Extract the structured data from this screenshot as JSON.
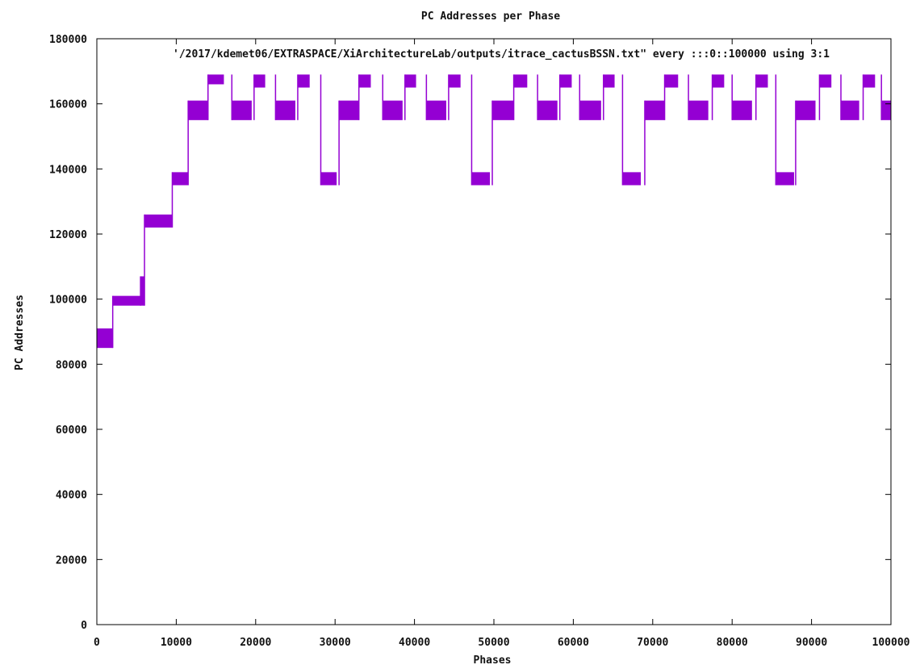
{
  "chart_data": {
    "type": "scatter",
    "title": "PC Addresses per Phase",
    "xlabel": "Phases",
    "ylabel": "PC Addresses",
    "xlim": [
      0,
      100000
    ],
    "ylim": [
      0,
      180000
    ],
    "x_ticks": [
      0,
      10000,
      20000,
      30000,
      40000,
      50000,
      60000,
      70000,
      80000,
      90000,
      100000
    ],
    "y_ticks": [
      0,
      20000,
      40000,
      60000,
      80000,
      100000,
      120000,
      140000,
      160000,
      180000
    ],
    "x_tick_labels": [
      "0",
      "10000",
      "20000",
      "30000",
      "40000",
      "50000",
      "60000",
      "70000",
      "80000",
      "90000",
      "100000"
    ],
    "y_tick_labels": [
      "0",
      "20000",
      "40000",
      "60000",
      "80000",
      "100000",
      "120000",
      "140000",
      "160000",
      "180000"
    ],
    "legend": "top-right",
    "grid": false,
    "color": "#9400d3",
    "series": [
      {
        "name": "'/2017/kdemet06/EXTRASPACE/XiArchitectureLab/outputs/itrace_cactusBSSN.txt\" every :::0::100000 using 3:1",
        "segments": [
          {
            "x": [
              0,
              2000
            ],
            "y": [
              85000,
              91000
            ]
          },
          {
            "x": [
              2000,
              5500
            ],
            "y": [
              98000,
              101000
            ]
          },
          {
            "x": [
              5500,
              6000
            ],
            "y": [
              98000,
              107000
            ]
          },
          {
            "x": [
              6000,
              9500
            ],
            "y": [
              122000,
              126000
            ]
          },
          {
            "x": [
              9500,
              11500
            ],
            "y": [
              135000,
              139000
            ]
          },
          {
            "x": [
              11500,
              14000
            ],
            "y": [
              155000,
              161000
            ]
          },
          {
            "x": [
              14000,
              16000
            ],
            "y": [
              166000,
              169000
            ]
          },
          {
            "x": [
              17000,
              19500
            ],
            "y": [
              155000,
              161000
            ]
          },
          {
            "x": [
              19800,
              21200
            ],
            "y": [
              165000,
              169000
            ]
          },
          {
            "x": [
              22500,
              25000
            ],
            "y": [
              155000,
              161000
            ]
          },
          {
            "x": [
              25300,
              26800
            ],
            "y": [
              165000,
              169000
            ]
          },
          {
            "x": [
              28200,
              30200
            ],
            "y": [
              135000,
              139000
            ]
          },
          {
            "x": [
              30500,
              33000
            ],
            "y": [
              155000,
              161000
            ]
          },
          {
            "x": [
              33000,
              34500
            ],
            "y": [
              165000,
              169000
            ]
          },
          {
            "x": [
              36000,
              38500
            ],
            "y": [
              155000,
              161000
            ]
          },
          {
            "x": [
              38800,
              40200
            ],
            "y": [
              165000,
              169000
            ]
          },
          {
            "x": [
              41500,
              44000
            ],
            "y": [
              155000,
              161000
            ]
          },
          {
            "x": [
              44300,
              45800
            ],
            "y": [
              165000,
              169000
            ]
          },
          {
            "x": [
              47200,
              49500
            ],
            "y": [
              135000,
              139000
            ]
          },
          {
            "x": [
              49800,
              52500
            ],
            "y": [
              155000,
              161000
            ]
          },
          {
            "x": [
              52500,
              54200
            ],
            "y": [
              165000,
              169000
            ]
          },
          {
            "x": [
              55500,
              58000
            ],
            "y": [
              155000,
              161000
            ]
          },
          {
            "x": [
              58300,
              59800
            ],
            "y": [
              165000,
              169000
            ]
          },
          {
            "x": [
              60800,
              63500
            ],
            "y": [
              155000,
              161000
            ]
          },
          {
            "x": [
              63800,
              65200
            ],
            "y": [
              165000,
              169000
            ]
          },
          {
            "x": [
              66200,
              68500
            ],
            "y": [
              135000,
              139000
            ]
          },
          {
            "x": [
              69000,
              71500
            ],
            "y": [
              155000,
              161000
            ]
          },
          {
            "x": [
              71500,
              73200
            ],
            "y": [
              165000,
              169000
            ]
          },
          {
            "x": [
              74500,
              77000
            ],
            "y": [
              155000,
              161000
            ]
          },
          {
            "x": [
              77500,
              79000
            ],
            "y": [
              165000,
              169000
            ]
          },
          {
            "x": [
              80000,
              82500
            ],
            "y": [
              155000,
              161000
            ]
          },
          {
            "x": [
              83000,
              84500
            ],
            "y": [
              165000,
              169000
            ]
          },
          {
            "x": [
              85500,
              87800
            ],
            "y": [
              135000,
              139000
            ]
          },
          {
            "x": [
              88000,
              90500
            ],
            "y": [
              155000,
              161000
            ]
          },
          {
            "x": [
              91000,
              92500
            ],
            "y": [
              165000,
              169000
            ]
          },
          {
            "x": [
              93700,
              96000
            ],
            "y": [
              155000,
              161000
            ]
          },
          {
            "x": [
              96500,
              98000
            ],
            "y": [
              165000,
              169000
            ]
          },
          {
            "x": [
              98800,
              100000
            ],
            "y": [
              155000,
              161000
            ]
          }
        ]
      }
    ]
  }
}
